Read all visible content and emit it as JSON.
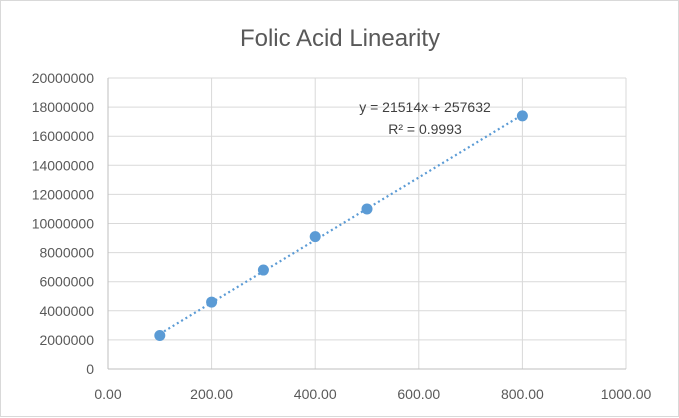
{
  "chart_data": {
    "type": "scatter",
    "title": "Folic Acid Linearity",
    "xlim": [
      0,
      1000
    ],
    "ylim": [
      0,
      20000000
    ],
    "x_ticks": [
      "0.00",
      "200.00",
      "400.00",
      "600.00",
      "800.00",
      "1000.00"
    ],
    "y_ticks": [
      "0",
      "2000000",
      "4000000",
      "6000000",
      "8000000",
      "10000000",
      "12000000",
      "14000000",
      "16000000",
      "18000000",
      "20000000"
    ],
    "grid": true,
    "series": [
      {
        "points": [
          {
            "x": 100,
            "y": 2300000
          },
          {
            "x": 200,
            "y": 4600000
          },
          {
            "x": 300,
            "y": 6800000
          },
          {
            "x": 400,
            "y": 9100000
          },
          {
            "x": 500,
            "y": 11000000
          },
          {
            "x": 800,
            "y": 17400000
          }
        ],
        "color": "#5b9bd5"
      }
    ],
    "trendline": {
      "type": "linear",
      "slope": 21514,
      "intercept": 257632,
      "x_range": [
        100,
        800
      ],
      "color": "#5b9bd5",
      "equation_label": "y = 21514x + 257632",
      "r2_label": "R² = 0.9993"
    }
  }
}
